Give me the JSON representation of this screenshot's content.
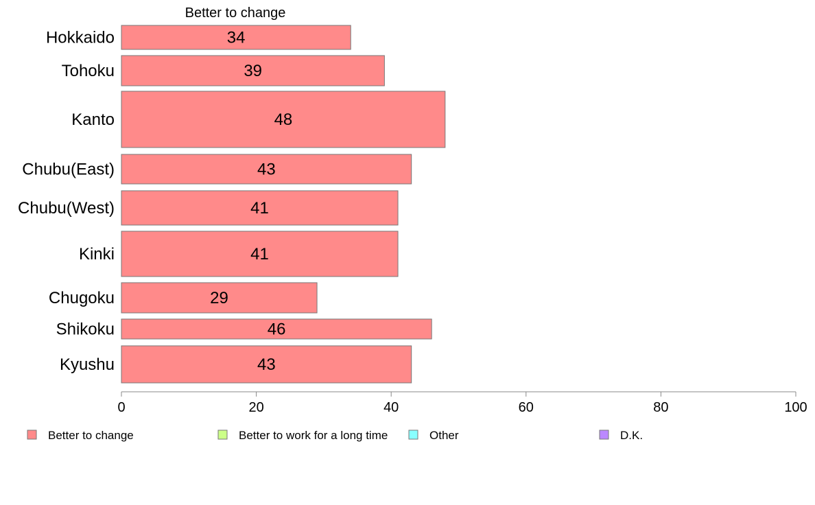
{
  "chart_data": {
    "type": "bar",
    "orientation": "horizontal",
    "series_title": "Better to change",
    "categories": [
      "Hokkaido",
      "Tohoku",
      "Kanto",
      "Chubu(East)",
      "Chubu(West)",
      "Kinki",
      "Chugoku",
      "Shikoku",
      "Kyushu"
    ],
    "series": [
      {
        "name": "Better to change",
        "color": "#ff8a8a",
        "values": [
          34,
          39,
          48,
          43,
          41,
          41,
          29,
          46,
          43
        ]
      }
    ],
    "xlim": [
      0,
      100
    ],
    "xticks": [
      "0",
      "20",
      "40",
      "60",
      "80",
      "100"
    ],
    "grid": false,
    "legend": {
      "placement": "bottom",
      "items": [
        {
          "label": "Better to change",
          "color": "#ff8a8a"
        },
        {
          "label": "Better to work for a long time",
          "color": "#ccff88"
        },
        {
          "label": "Other",
          "color": "#88ffff"
        },
        {
          "label": "D.K.",
          "color": "#bb88ff"
        }
      ]
    }
  }
}
